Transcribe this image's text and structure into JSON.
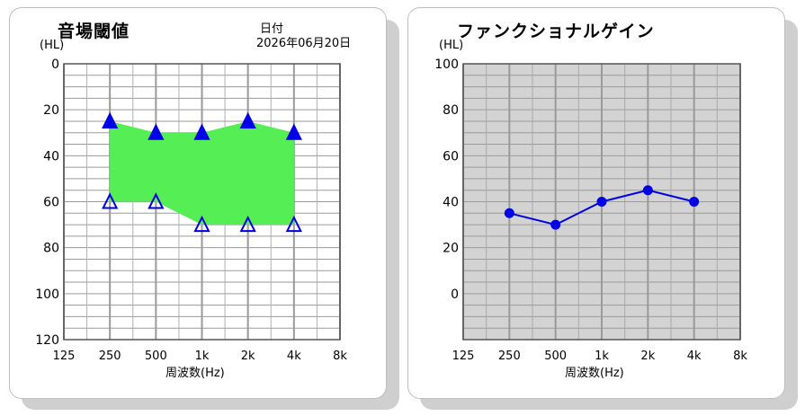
{
  "chart_data": [
    {
      "type": "scatter",
      "title": "音場閾値",
      "date_label": "日付",
      "date_value": "2026年06月20日",
      "ylabel": "(HL)",
      "xlabel": "周波数(Hz)",
      "x_ticks": [
        "125",
        "250",
        "500",
        "1k",
        "2k",
        "4k",
        "8k"
      ],
      "y_ticks": [
        "0",
        "20",
        "40",
        "60",
        "80",
        "100",
        "120"
      ],
      "ylim": [
        0,
        120
      ],
      "y_inverted": true,
      "grid": true,
      "x": [
        "250",
        "500",
        "1k",
        "2k",
        "4k"
      ],
      "series": [
        {
          "marker": "filled-triangle",
          "values": [
            25,
            30,
            30,
            25,
            30
          ]
        },
        {
          "marker": "hollow-triangle",
          "values": [
            60,
            60,
            70,
            70,
            70
          ]
        }
      ],
      "band_fill": "between series",
      "colors": {
        "marker": "#0000e6",
        "band": "#55ee55"
      }
    },
    {
      "type": "line",
      "title": "ファンクショナルゲイン",
      "ylabel": "(HL)",
      "xlabel": "周波数(Hz)",
      "x_ticks": [
        "125",
        "250",
        "500",
        "1k",
        "2k",
        "4k",
        "8k"
      ],
      "y_ticks": [
        "100",
        "80",
        "60",
        "40",
        "20",
        "0"
      ],
      "ylim": [
        -20,
        100
      ],
      "grid": true,
      "x": [
        "250",
        "500",
        "1k",
        "2k",
        "4k"
      ],
      "series": [
        {
          "marker": "filled-circle",
          "values": [
            35,
            30,
            40,
            45,
            40
          ]
        }
      ],
      "colors": {
        "line": "#0000e6",
        "plot_background": "#d3d3d3"
      }
    }
  ]
}
